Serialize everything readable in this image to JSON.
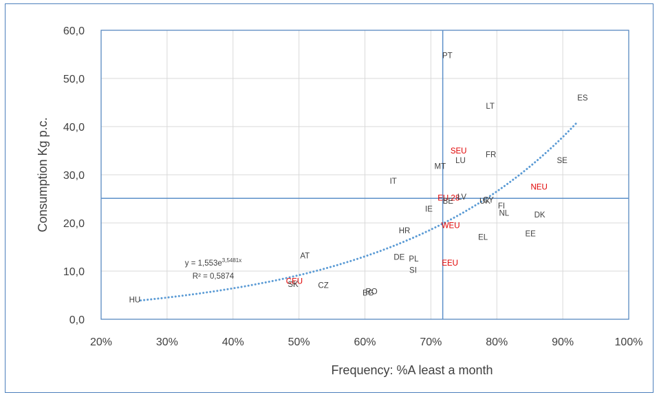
{
  "chart_data": {
    "type": "scatter",
    "xlabel": "Frequency:  %A least a month",
    "ylabel": "Consumption  Kg p.c.",
    "xlim": [
      0.2,
      1.0
    ],
    "ylim": [
      0,
      60
    ],
    "x_ticks": [
      "20%",
      "30%",
      "40%",
      "50%",
      "60%",
      "70%",
      "80%",
      "90%",
      "100%"
    ],
    "y_ticks": [
      "0,0",
      "10,0",
      "20,0",
      "30,0",
      "40,0",
      "50,0",
      "60,0"
    ],
    "grid": true,
    "reference_lines": {
      "x": 0.718,
      "y": 25.1
    },
    "label_color_country": "#404040",
    "label_color_region": "#e00000",
    "trendline": {
      "type": "exponential",
      "a": 1.553,
      "b": 3.5481,
      "x_range": [
        0.26,
        0.92
      ],
      "color": "#5b9bd5",
      "equation_base": "y = 1,553e",
      "equation_exp": "3,5481x",
      "r_squared": "R² = 0,5874"
    },
    "points": [
      {
        "label": "PT",
        "x": 0.725,
        "y": 54.8,
        "group": "country"
      },
      {
        "label": "ES",
        "x": 0.93,
        "y": 46.0,
        "group": "country"
      },
      {
        "label": "LT",
        "x": 0.79,
        "y": 44.3,
        "group": "country"
      },
      {
        "label": "SEU",
        "x": 0.742,
        "y": 35.0,
        "group": "region"
      },
      {
        "label": "FR",
        "x": 0.791,
        "y": 34.2,
        "group": "country"
      },
      {
        "label": "LU",
        "x": 0.745,
        "y": 33.0,
        "group": "country"
      },
      {
        "label": "SE",
        "x": 0.899,
        "y": 33.0,
        "group": "country"
      },
      {
        "label": "MT",
        "x": 0.714,
        "y": 31.8,
        "group": "country"
      },
      {
        "label": "IT",
        "x": 0.643,
        "y": 28.7,
        "group": "country"
      },
      {
        "label": "NEU",
        "x": 0.864,
        "y": 27.5,
        "group": "region"
      },
      {
        "label": "EU 28",
        "x": 0.727,
        "y": 25.2,
        "group": "region"
      },
      {
        "label": "LV",
        "x": 0.747,
        "y": 25.4,
        "group": "country"
      },
      {
        "label": "BE",
        "x": 0.726,
        "y": 24.6,
        "group": "country"
      },
      {
        "label": "UK",
        "x": 0.782,
        "y": 24.6,
        "group": "country"
      },
      {
        "label": "CY",
        "x": 0.787,
        "y": 24.8,
        "group": "country"
      },
      {
        "label": "FI",
        "x": 0.807,
        "y": 23.6,
        "group": "country"
      },
      {
        "label": "IE",
        "x": 0.697,
        "y": 22.9,
        "group": "country"
      },
      {
        "label": "NL",
        "x": 0.811,
        "y": 22.1,
        "group": "country"
      },
      {
        "label": "DK",
        "x": 0.865,
        "y": 21.7,
        "group": "country"
      },
      {
        "label": "WEU",
        "x": 0.73,
        "y": 19.5,
        "group": "region"
      },
      {
        "label": "HR",
        "x": 0.66,
        "y": 18.4,
        "group": "country"
      },
      {
        "label": "EE",
        "x": 0.851,
        "y": 17.8,
        "group": "country"
      },
      {
        "label": "EL",
        "x": 0.779,
        "y": 17.1,
        "group": "country"
      },
      {
        "label": "AT",
        "x": 0.509,
        "y": 13.2,
        "group": "country"
      },
      {
        "label": "DE",
        "x": 0.652,
        "y": 12.9,
        "group": "country"
      },
      {
        "label": "PL",
        "x": 0.674,
        "y": 12.6,
        "group": "country"
      },
      {
        "label": "EEU",
        "x": 0.729,
        "y": 11.7,
        "group": "region"
      },
      {
        "label": "SI",
        "x": 0.673,
        "y": 10.2,
        "group": "country"
      },
      {
        "label": "CEU",
        "x": 0.493,
        "y": 7.9,
        "group": "region"
      },
      {
        "label": "SK",
        "x": 0.491,
        "y": 7.3,
        "group": "country"
      },
      {
        "label": "CZ",
        "x": 0.537,
        "y": 7.1,
        "group": "country"
      },
      {
        "label": "RO",
        "x": 0.61,
        "y": 5.8,
        "group": "country"
      },
      {
        "label": "BG",
        "x": 0.605,
        "y": 5.5,
        "group": "country"
      },
      {
        "label": "HU",
        "x": 0.251,
        "y": 4.1,
        "group": "country"
      }
    ]
  }
}
